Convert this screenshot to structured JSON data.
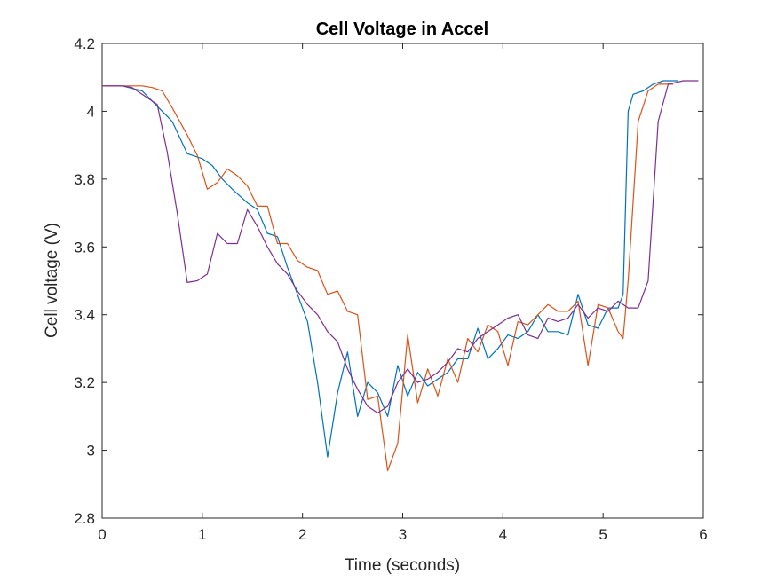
{
  "chart_data": {
    "type": "line",
    "title": "Cell Voltage in Accel",
    "xlabel": "Time (seconds)",
    "ylabel": "Cell voltage (V)",
    "xlim": [
      0,
      6
    ],
    "ylim": [
      2.8,
      4.2
    ],
    "xticks": [
      "0",
      "1",
      "2",
      "3",
      "4",
      "5",
      "6"
    ],
    "yticks": [
      "2.8",
      "3",
      "3.2",
      "3.4",
      "3.6",
      "3.8",
      "4",
      "4.2"
    ],
    "grid": false,
    "series": [
      {
        "color": "#0072BD",
        "x": [
          0,
          0.2,
          0.4,
          0.6,
          0.7,
          0.85,
          1.0,
          1.1,
          1.2,
          1.3,
          1.45,
          1.55,
          1.65,
          1.75,
          1.85,
          1.95,
          2.05,
          2.15,
          2.25,
          2.35,
          2.45,
          2.55,
          2.65,
          2.75,
          2.85,
          2.95,
          3.05,
          3.15,
          3.25,
          3.35,
          3.45,
          3.55,
          3.65,
          3.75,
          3.85,
          3.95,
          4.05,
          4.15,
          4.25,
          4.35,
          4.45,
          4.55,
          4.65,
          4.75,
          4.85,
          4.95,
          5.05,
          5.15,
          5.2,
          5.25,
          5.3,
          5.4,
          5.5,
          5.6,
          5.75
        ],
        "y": [
          4.075,
          4.075,
          4.06,
          4.0,
          3.97,
          3.875,
          3.86,
          3.84,
          3.8,
          3.77,
          3.73,
          3.71,
          3.64,
          3.63,
          3.54,
          3.46,
          3.38,
          3.2,
          2.98,
          3.17,
          3.29,
          3.1,
          3.2,
          3.17,
          3.1,
          3.25,
          3.16,
          3.23,
          3.19,
          3.21,
          3.23,
          3.27,
          3.27,
          3.36,
          3.27,
          3.3,
          3.34,
          3.33,
          3.35,
          3.4,
          3.35,
          3.35,
          3.34,
          3.46,
          3.37,
          3.36,
          3.42,
          3.42,
          3.46,
          4.0,
          4.05,
          4.06,
          4.08,
          4.09,
          4.09
        ]
      },
      {
        "color": "#D95319",
        "x": [
          0,
          0.2,
          0.4,
          0.5,
          0.6,
          0.7,
          0.85,
          0.95,
          1.05,
          1.15,
          1.25,
          1.35,
          1.45,
          1.55,
          1.65,
          1.75,
          1.85,
          1.95,
          2.05,
          2.15,
          2.25,
          2.35,
          2.45,
          2.55,
          2.65,
          2.75,
          2.85,
          2.95,
          3.05,
          3.15,
          3.25,
          3.35,
          3.45,
          3.55,
          3.65,
          3.75,
          3.85,
          3.95,
          4.05,
          4.15,
          4.25,
          4.35,
          4.45,
          4.55,
          4.65,
          4.75,
          4.85,
          4.95,
          5.05,
          5.15,
          5.2,
          5.25,
          5.35,
          5.45,
          5.55,
          5.7
        ],
        "y": [
          4.075,
          4.075,
          4.075,
          4.07,
          4.06,
          4.01,
          3.93,
          3.87,
          3.77,
          3.79,
          3.83,
          3.81,
          3.78,
          3.72,
          3.72,
          3.61,
          3.61,
          3.56,
          3.54,
          3.53,
          3.46,
          3.47,
          3.41,
          3.4,
          3.15,
          3.16,
          2.94,
          3.02,
          3.34,
          3.14,
          3.24,
          3.16,
          3.27,
          3.2,
          3.33,
          3.29,
          3.37,
          3.35,
          3.25,
          3.38,
          3.37,
          3.4,
          3.43,
          3.41,
          3.41,
          3.44,
          3.25,
          3.43,
          3.42,
          3.35,
          3.33,
          3.5,
          3.97,
          4.06,
          4.08,
          4.08
        ]
      },
      {
        "color": "#7E2F8E",
        "x": [
          0,
          0.2,
          0.3,
          0.45,
          0.55,
          0.65,
          0.75,
          0.85,
          0.95,
          1.05,
          1.15,
          1.25,
          1.35,
          1.45,
          1.55,
          1.65,
          1.75,
          1.85,
          1.95,
          2.05,
          2.15,
          2.25,
          2.35,
          2.45,
          2.55,
          2.65,
          2.75,
          2.85,
          2.95,
          3.05,
          3.15,
          3.25,
          3.35,
          3.45,
          3.55,
          3.65,
          3.75,
          3.85,
          3.95,
          4.05,
          4.15,
          4.25,
          4.35,
          4.45,
          4.55,
          4.65,
          4.75,
          4.85,
          4.95,
          5.05,
          5.15,
          5.25,
          5.35,
          5.45,
          5.55,
          5.65,
          5.8,
          5.95
        ],
        "y": [
          4.075,
          4.075,
          4.07,
          4.04,
          4.02,
          3.88,
          3.7,
          3.495,
          3.5,
          3.52,
          3.64,
          3.61,
          3.61,
          3.71,
          3.66,
          3.6,
          3.55,
          3.52,
          3.47,
          3.43,
          3.4,
          3.35,
          3.32,
          3.24,
          3.18,
          3.13,
          3.11,
          3.13,
          3.2,
          3.24,
          3.2,
          3.21,
          3.23,
          3.26,
          3.3,
          3.29,
          3.33,
          3.35,
          3.37,
          3.39,
          3.4,
          3.34,
          3.33,
          3.39,
          3.38,
          3.39,
          3.43,
          3.39,
          3.42,
          3.41,
          3.44,
          3.42,
          3.42,
          3.5,
          3.97,
          4.08,
          4.09,
          4.09
        ]
      }
    ]
  }
}
